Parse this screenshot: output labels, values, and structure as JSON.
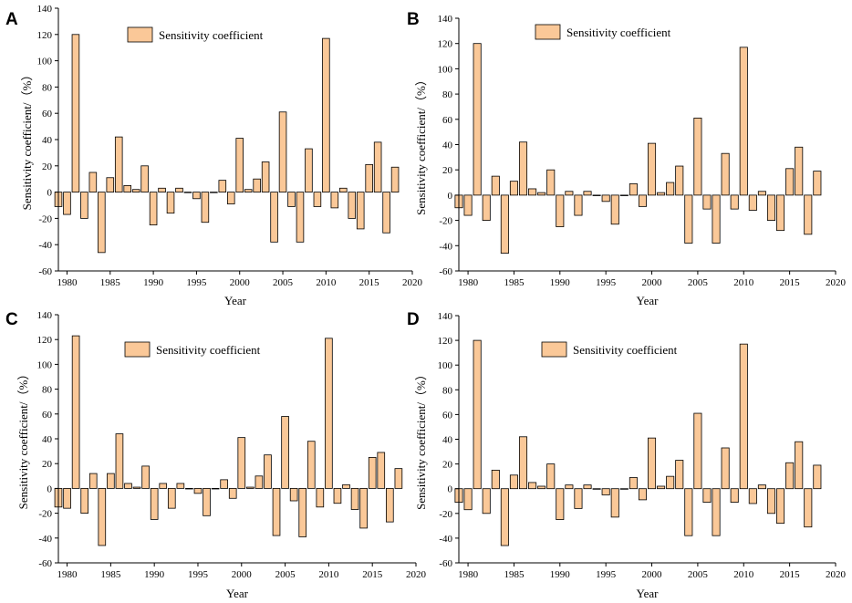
{
  "chart_data": [
    {
      "type": "bar",
      "panel_label": "A",
      "title": "",
      "xlabel": "Year",
      "ylabel": "Sensitivity coefficient/（%）",
      "legend": "Sensitivity coefficient",
      "legend_position": "top-center",
      "ylim": [
        -60,
        140
      ],
      "xlim": [
        1979,
        2020
      ],
      "yticks": [
        "-60",
        "-40",
        "-20",
        "0",
        "20",
        "40",
        "60",
        "80",
        "100",
        "120",
        "140"
      ],
      "xticks": [
        "1980",
        "1985",
        "1990",
        "1995",
        "2000",
        "2005",
        "2010",
        "2015",
        "2020"
      ],
      "x": [
        1979,
        1980,
        1981,
        1982,
        1983,
        1984,
        1985,
        1986,
        1987,
        1988,
        1989,
        1990,
        1991,
        1992,
        1993,
        1994,
        1995,
        1996,
        1997,
        1998,
        1999,
        2000,
        2001,
        2002,
        2003,
        2004,
        2005,
        2006,
        2007,
        2008,
        2009,
        2010,
        2011,
        2012,
        2013,
        2014,
        2015,
        2016,
        2017,
        2018
      ],
      "values": [
        -11,
        -17,
        120,
        -20,
        15,
        -46,
        11,
        42,
        5,
        2,
        20,
        -25,
        3,
        -16,
        3,
        0,
        -5,
        -23,
        0,
        9,
        -9,
        41,
        2,
        10,
        23,
        -38,
        61,
        -11,
        -38,
        33,
        -11,
        117,
        -12,
        3,
        -20,
        -28,
        21,
        38,
        -31,
        19
      ]
    },
    {
      "type": "bar",
      "panel_label": "B",
      "title": "",
      "xlabel": "Year",
      "ylabel": "Sensitivity coefficient/（%）",
      "legend": "Sensitivity coefficient",
      "legend_position": "top-center",
      "ylim": [
        -60,
        140
      ],
      "xlim": [
        1979,
        2020
      ],
      "yticks": [
        "-60",
        "-40",
        "-20",
        "0",
        "20",
        "40",
        "60",
        "80",
        "100",
        "120",
        "140"
      ],
      "xticks": [
        "1980",
        "1985",
        "1990",
        "1995",
        "2000",
        "2005",
        "2010",
        "2015",
        "2020"
      ],
      "x": [
        1979,
        1980,
        1981,
        1982,
        1983,
        1984,
        1985,
        1986,
        1987,
        1988,
        1989,
        1990,
        1991,
        1992,
        1993,
        1994,
        1995,
        1996,
        1997,
        1998,
        1999,
        2000,
        2001,
        2002,
        2003,
        2004,
        2005,
        2006,
        2007,
        2008,
        2009,
        2010,
        2011,
        2012,
        2013,
        2014,
        2015,
        2016,
        2017,
        2018
      ],
      "values": [
        -10,
        -16,
        120,
        -20,
        15,
        -46,
        11,
        42,
        5,
        2,
        20,
        -25,
        3,
        -16,
        3,
        0,
        -5,
        -23,
        0,
        9,
        -9,
        41,
        2,
        10,
        23,
        -38,
        61,
        -11,
        -38,
        33,
        -11,
        117,
        -12,
        3,
        -20,
        -28,
        21,
        38,
        -31,
        19
      ]
    },
    {
      "type": "bar",
      "panel_label": "C",
      "title": "",
      "xlabel": "Year",
      "ylabel": "Sensitivity coefficient/（%）",
      "legend": "Sensitivity coefficient",
      "legend_position": "top-center",
      "ylim": [
        -60,
        140
      ],
      "xlim": [
        1979,
        2020
      ],
      "yticks": [
        "-60",
        "-40",
        "-20",
        "0",
        "20",
        "40",
        "60",
        "80",
        "100",
        "120",
        "140"
      ],
      "xticks": [
        "1980",
        "1985",
        "1990",
        "1995",
        "2000",
        "2005",
        "2010",
        "2015",
        "2020"
      ],
      "x": [
        1979,
        1980,
        1981,
        1982,
        1983,
        1984,
        1985,
        1986,
        1987,
        1988,
        1989,
        1990,
        1991,
        1992,
        1993,
        1994,
        1995,
        1996,
        1997,
        1998,
        1999,
        2000,
        2001,
        2002,
        2003,
        2004,
        2005,
        2006,
        2007,
        2008,
        2009,
        2010,
        2011,
        2012,
        2013,
        2014,
        2015,
        2016,
        2017,
        2018
      ],
      "values": [
        -15,
        -16,
        123,
        -20,
        12,
        -46,
        12,
        44,
        4,
        1,
        18,
        -25,
        4,
        -16,
        4,
        0,
        -4,
        -22,
        0,
        7,
        -8,
        41,
        1,
        10,
        27,
        -38,
        58,
        -10,
        -39,
        38,
        -15,
        121,
        -12,
        3,
        -17,
        -32,
        25,
        29,
        -27,
        16
      ]
    },
    {
      "type": "bar",
      "panel_label": "D",
      "title": "",
      "xlabel": "Year",
      "ylabel": "Sensitivity coefficient/（%）",
      "legend": "Sensitivity coefficient",
      "legend_position": "top-center",
      "ylim": [
        -60,
        140
      ],
      "xlim": [
        1979,
        2020
      ],
      "yticks": [
        "-60",
        "-40",
        "-20",
        "0",
        "20",
        "40",
        "60",
        "80",
        "100",
        "120",
        "140"
      ],
      "xticks": [
        "1980",
        "1985",
        "1990",
        "1995",
        "2000",
        "2005",
        "2010",
        "2015",
        "2020"
      ],
      "x": [
        1979,
        1980,
        1981,
        1982,
        1983,
        1984,
        1985,
        1986,
        1987,
        1988,
        1989,
        1990,
        1991,
        1992,
        1993,
        1994,
        1995,
        1996,
        1997,
        1998,
        1999,
        2000,
        2001,
        2002,
        2003,
        2004,
        2005,
        2006,
        2007,
        2008,
        2009,
        2010,
        2011,
        2012,
        2013,
        2014,
        2015,
        2016,
        2017,
        2018
      ],
      "values": [
        -11,
        -17,
        120,
        -20,
        15,
        -46,
        11,
        42,
        5,
        2,
        20,
        -25,
        3,
        -16,
        3,
        0,
        -5,
        -23,
        0,
        9,
        -9,
        41,
        2,
        10,
        23,
        -38,
        61,
        -11,
        -38,
        33,
        -11,
        117,
        -12,
        3,
        -20,
        -28,
        21,
        38,
        -31,
        19
      ]
    }
  ],
  "colors": {
    "bar_fill": "#fac898",
    "bar_stroke": "#000000",
    "axis": "#000000"
  }
}
